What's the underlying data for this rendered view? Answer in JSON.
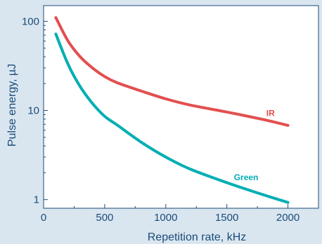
{
  "chart_data": {
    "type": "line",
    "title": "",
    "xlabel": "Repetition rate, kHz",
    "ylabel": "Pulse energy, µJ",
    "xlim": [
      0,
      2250
    ],
    "ylim": [
      0.8,
      150
    ],
    "yscale": "log",
    "xticks": [
      0,
      500,
      1000,
      1500,
      2000
    ],
    "xtick_labels": [
      "0",
      "500",
      "1000",
      "1500",
      "2000"
    ],
    "yticks": [
      1,
      10,
      100
    ],
    "ytick_labels": [
      "1",
      "10",
      "100"
    ],
    "grid": false,
    "legend": "inline labels",
    "series": [
      {
        "name": "IR",
        "color": "#e34f4f",
        "x": [
          100,
          200,
          300,
          400,
          500,
          600,
          800,
          1000,
          1200,
          1500,
          1800,
          2000
        ],
        "y": [
          110,
          60,
          40,
          30,
          24,
          20.5,
          16.5,
          13.5,
          11.5,
          9.6,
          7.9,
          6.8
        ]
      },
      {
        "name": "Green",
        "color": "#00aeb4",
        "x": [
          100,
          200,
          300,
          400,
          500,
          600,
          800,
          1000,
          1200,
          1500,
          1800,
          2000
        ],
        "y": [
          72,
          33,
          18.5,
          12,
          8.6,
          6.9,
          4.4,
          3.0,
          2.2,
          1.55,
          1.13,
          0.93
        ]
      }
    ]
  },
  "colors": {
    "background": "#d9e6f0",
    "plot_area": "#ffffff",
    "axis": "#1c4b78",
    "ir": "#e34f4f",
    "green": "#00aeb4"
  }
}
